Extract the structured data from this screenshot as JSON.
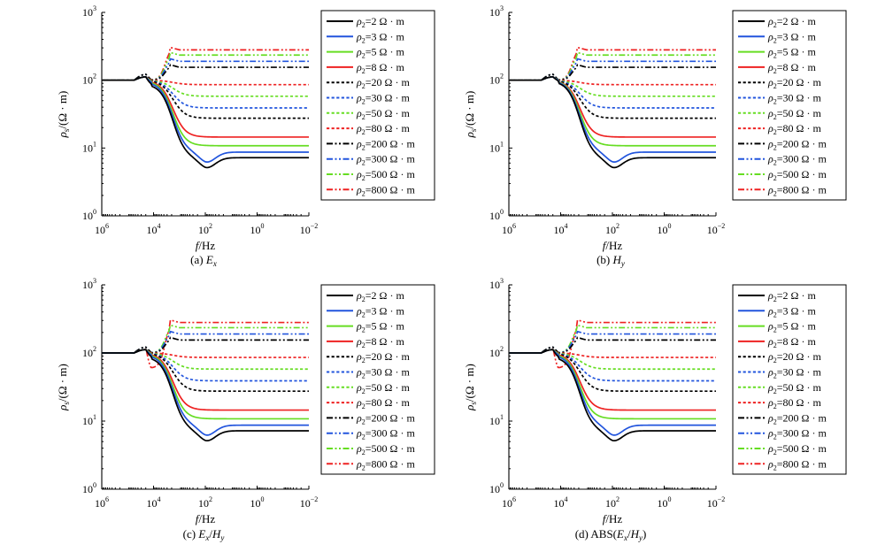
{
  "figure": {
    "xlabel_f": "f",
    "xlabel_unit": "/Hz",
    "ylabel_rho": "ρ",
    "ylabel_sub": "s",
    "ylabel_unit": "/(Ω · m)",
    "legend_rho": "ρ",
    "legend_sub": "2",
    "legend_unit": "Ω · m"
  },
  "chart_data": [
    {
      "type": "line",
      "caption_prefix": "(a) ",
      "caption_math": "Ex",
      "xscale": "log",
      "x_reversed": true,
      "xlim": [
        1000000,
        0.01
      ],
      "x_ticks": [
        "10^6",
        "10^4",
        "10^2",
        "10^0",
        "10^-2"
      ],
      "yscale": "log",
      "ylim": [
        1,
        1000
      ],
      "y_ticks": [
        "10^0",
        "10^1",
        "10^2",
        "10^3"
      ],
      "legend_position": "right",
      "series": [
        {
          "name": "ρ2=2 Ω·m",
          "rho2": 2,
          "color": "#000000",
          "style": "solid",
          "low_value": 7.2,
          "dip": 0.88,
          "near_peak": 1.15
        },
        {
          "name": "ρ2=3 Ω·m",
          "rho2": 3,
          "color": "#2255dd",
          "style": "solid",
          "low_value": 8.7,
          "dip": 0.94,
          "near_peak": 1.15
        },
        {
          "name": "ρ2=5 Ω·m",
          "rho2": 5,
          "color": "#66dd22",
          "style": "solid",
          "low_value": 10.8,
          "dip": 0.97,
          "near_peak": 1.15
        },
        {
          "name": "ρ2=8 Ω·m",
          "rho2": 8,
          "color": "#ee2222",
          "style": "solid",
          "low_value": 14.5,
          "dip": 0.99,
          "near_peak": 1.15
        },
        {
          "name": "ρ2=20 Ω·m",
          "rho2": 20,
          "color": "#000000",
          "style": "dot",
          "low_value": 27.5,
          "dip": 1,
          "near_peak": 1.15
        },
        {
          "name": "ρ2=30 Ω·m",
          "rho2": 30,
          "color": "#2255dd",
          "style": "dot",
          "low_value": 39,
          "dip": 1,
          "near_peak": 1.15
        },
        {
          "name": "ρ2=50 Ω·m",
          "rho2": 50,
          "color": "#66dd22",
          "style": "dot",
          "low_value": 58,
          "dip": 1,
          "near_peak": 1.15
        },
        {
          "name": "ρ2=80 Ω·m",
          "rho2": 80,
          "color": "#ee2222",
          "style": "dot",
          "low_value": 86,
          "dip": 1,
          "near_peak": 1.15
        },
        {
          "name": "ρ2=200 Ω·m",
          "rho2": 200,
          "color": "#000000",
          "style": "dashdotdot",
          "low_value": 155,
          "dip": 1,
          "near_peak": 1.1
        },
        {
          "name": "ρ2=300 Ω·m",
          "rho2": 300,
          "color": "#2255dd",
          "style": "dashdotdot",
          "low_value": 190,
          "dip": 1,
          "near_peak": 1.1
        },
        {
          "name": "ρ2=500 Ω·m",
          "rho2": 500,
          "color": "#66dd22",
          "style": "dashdotdot",
          "low_value": 235,
          "dip": 1,
          "near_peak": 1.1
        },
        {
          "name": "ρ2=800 Ω·m",
          "rho2": 800,
          "color": "#ee2222",
          "style": "dashdotdot",
          "low_value": 280,
          "dip": 1,
          "near_peak": 1.1
        }
      ]
    },
    {
      "type": "line",
      "caption_prefix": "(b) ",
      "caption_math": "Hy",
      "xscale": "log",
      "x_reversed": true,
      "xlim": [
        1000000,
        0.01
      ],
      "x_ticks": [
        "10^6",
        "10^4",
        "10^2",
        "10^0",
        "10^-2"
      ],
      "yscale": "log",
      "ylim": [
        1,
        1000
      ],
      "y_ticks": [
        "10^0",
        "10^1",
        "10^2",
        "10^3"
      ],
      "legend_position": "right",
      "series": [
        {
          "name": "ρ2=2 Ω·m",
          "rho2": 2,
          "color": "#000000",
          "style": "solid",
          "low_value": 7.2,
          "dip": 0.97,
          "near_peak": 1.15
        },
        {
          "name": "ρ2=3 Ω·m",
          "rho2": 3,
          "color": "#2255dd",
          "style": "solid",
          "low_value": 8.7,
          "dip": 0.99,
          "near_peak": 1.15
        },
        {
          "name": "ρ2=5 Ω·m",
          "rho2": 5,
          "color": "#66dd22",
          "style": "solid",
          "low_value": 10.8,
          "dip": 1,
          "near_peak": 1.15
        },
        {
          "name": "ρ2=8 Ω·m",
          "rho2": 8,
          "color": "#ee2222",
          "style": "solid",
          "low_value": 14.5,
          "dip": 1,
          "near_peak": 1.15
        },
        {
          "name": "ρ2=20 Ω·m",
          "rho2": 20,
          "color": "#000000",
          "style": "dot",
          "low_value": 27.5,
          "dip": 1,
          "near_peak": 1.15
        },
        {
          "name": "ρ2=30 Ω·m",
          "rho2": 30,
          "color": "#2255dd",
          "style": "dot",
          "low_value": 39,
          "dip": 1,
          "near_peak": 1.15
        },
        {
          "name": "ρ2=50 Ω·m",
          "rho2": 50,
          "color": "#66dd22",
          "style": "dot",
          "low_value": 58,
          "dip": 1,
          "near_peak": 1.15
        },
        {
          "name": "ρ2=80 Ω·m",
          "rho2": 80,
          "color": "#ee2222",
          "style": "dot",
          "low_value": 86,
          "dip": 1,
          "near_peak": 1.15
        },
        {
          "name": "ρ2=200 Ω·m",
          "rho2": 200,
          "color": "#000000",
          "style": "dashdotdot",
          "low_value": 155,
          "dip": 1,
          "near_peak": 1.1
        },
        {
          "name": "ρ2=300 Ω·m",
          "rho2": 300,
          "color": "#2255dd",
          "style": "dashdotdot",
          "low_value": 190,
          "dip": 1,
          "near_peak": 1.1
        },
        {
          "name": "ρ2=500 Ω·m",
          "rho2": 500,
          "color": "#66dd22",
          "style": "dashdotdot",
          "low_value": 235,
          "dip": 1,
          "near_peak": 1.1
        },
        {
          "name": "ρ2=800 Ω·m",
          "rho2": 800,
          "color": "#ee2222",
          "style": "dashdotdot",
          "low_value": 280,
          "dip": 1,
          "near_peak": 1.1
        }
      ]
    },
    {
      "type": "line",
      "caption_prefix": "(c) ",
      "caption_math": "Ex/Hy",
      "xscale": "log",
      "x_reversed": true,
      "xlim": [
        1000000,
        0.01
      ],
      "x_ticks": [
        "10^6",
        "10^4",
        "10^2",
        "10^0",
        "10^-2"
      ],
      "yscale": "log",
      "ylim": [
        1,
        1000
      ],
      "y_ticks": [
        "10^0",
        "10^1",
        "10^2",
        "10^3"
      ],
      "legend_position": "right",
      "series": [
        {
          "name": "ρ2=2 Ω·m",
          "rho2": 2,
          "color": "#000000",
          "style": "solid",
          "low_value": 7.2,
          "dip": 0.88,
          "near_peak": 1.15
        },
        {
          "name": "ρ2=3 Ω·m",
          "rho2": 3,
          "color": "#2255dd",
          "style": "solid",
          "low_value": 8.7,
          "dip": 0.94,
          "near_peak": 1.15
        },
        {
          "name": "ρ2=5 Ω·m",
          "rho2": 5,
          "color": "#66dd22",
          "style": "solid",
          "low_value": 10.8,
          "dip": 0.97,
          "near_peak": 1.15
        },
        {
          "name": "ρ2=8 Ω·m",
          "rho2": 8,
          "color": "#ee2222",
          "style": "solid",
          "low_value": 14.5,
          "dip": 0.99,
          "near_peak": 1.15
        },
        {
          "name": "ρ2=20 Ω·m",
          "rho2": 20,
          "color": "#000000",
          "style": "dot",
          "low_value": 27.5,
          "dip": 1,
          "near_peak": 1.15
        },
        {
          "name": "ρ2=30 Ω·m",
          "rho2": 30,
          "color": "#2255dd",
          "style": "dot",
          "low_value": 39,
          "dip": 1,
          "near_peak": 1.15
        },
        {
          "name": "ρ2=50 Ω·m",
          "rho2": 50,
          "color": "#66dd22",
          "style": "dot",
          "low_value": 58,
          "dip": 1,
          "near_peak": 1.15
        },
        {
          "name": "ρ2=80 Ω·m",
          "rho2": 80,
          "color": "#ee2222",
          "style": "dot",
          "low_value": 86,
          "dip": 1,
          "near_peak": 1.15
        },
        {
          "name": "ρ2=200 Ω·m",
          "rho2": 200,
          "color": "#000000",
          "style": "dashdotdot",
          "low_value": 155,
          "dip": 1,
          "near_peak": 1.1
        },
        {
          "name": "ρ2=300 Ω·m",
          "rho2": 300,
          "color": "#2255dd",
          "style": "dashdotdot",
          "low_value": 190,
          "dip": 1,
          "near_peak": 1.1
        },
        {
          "name": "ρ2=500 Ω·m",
          "rho2": 500,
          "color": "#66dd22",
          "style": "dashdotdot",
          "low_value": 235,
          "dip": 1,
          "near_peak": 1.1
        },
        {
          "name": "ρ2=800 Ω·m",
          "rho2": 800,
          "color": "#ee2222",
          "style": "dashdotdot",
          "low_value": 280,
          "dip": 0.6,
          "near_peak": 1.1
        }
      ]
    },
    {
      "type": "line",
      "caption_prefix": "(d) ABS(",
      "caption_math": "Ex/Hy",
      "caption_suffix": ")",
      "xscale": "log",
      "x_reversed": true,
      "xlim": [
        1000000,
        0.01
      ],
      "x_ticks": [
        "10^6",
        "10^4",
        "10^2",
        "10^0",
        "10^-2"
      ],
      "yscale": "log",
      "ylim": [
        1,
        1000
      ],
      "y_ticks": [
        "10^0",
        "10^1",
        "10^2",
        "10^3"
      ],
      "legend_position": "right",
      "series": [
        {
          "name": "ρ2=2 Ω·m",
          "rho2": 2,
          "color": "#000000",
          "style": "solid",
          "low_value": 7.2,
          "dip": 0.88,
          "near_peak": 1.15
        },
        {
          "name": "ρ2=3 Ω·m",
          "rho2": 3,
          "color": "#2255dd",
          "style": "solid",
          "low_value": 8.7,
          "dip": 0.94,
          "near_peak": 1.15
        },
        {
          "name": "ρ2=5 Ω·m",
          "rho2": 5,
          "color": "#66dd22",
          "style": "solid",
          "low_value": 10.8,
          "dip": 0.97,
          "near_peak": 1.15
        },
        {
          "name": "ρ2=8 Ω·m",
          "rho2": 8,
          "color": "#ee2222",
          "style": "solid",
          "low_value": 14.5,
          "dip": 0.99,
          "near_peak": 1.15
        },
        {
          "name": "ρ2=20 Ω·m",
          "rho2": 20,
          "color": "#000000",
          "style": "dot",
          "low_value": 27.5,
          "dip": 1,
          "near_peak": 1.15
        },
        {
          "name": "ρ2=30 Ω·m",
          "rho2": 30,
          "color": "#2255dd",
          "style": "dot",
          "low_value": 39,
          "dip": 1,
          "near_peak": 1.15
        },
        {
          "name": "ρ2=50 Ω·m",
          "rho2": 50,
          "color": "#66dd22",
          "style": "dot",
          "low_value": 58,
          "dip": 1,
          "near_peak": 1.15
        },
        {
          "name": "ρ2=80 Ω·m",
          "rho2": 80,
          "color": "#ee2222",
          "style": "dot",
          "low_value": 86,
          "dip": 1,
          "near_peak": 1.15
        },
        {
          "name": "ρ2=200 Ω·m",
          "rho2": 200,
          "color": "#000000",
          "style": "dashdotdot",
          "low_value": 155,
          "dip": 1,
          "near_peak": 1.1
        },
        {
          "name": "ρ2=300 Ω·m",
          "rho2": 300,
          "color": "#2255dd",
          "style": "dashdotdot",
          "low_value": 190,
          "dip": 1,
          "near_peak": 1.1
        },
        {
          "name": "ρ2=500 Ω·m",
          "rho2": 500,
          "color": "#66dd22",
          "style": "dashdotdot",
          "low_value": 235,
          "dip": 1,
          "near_peak": 1.1
        },
        {
          "name": "ρ2=800 Ω·m",
          "rho2": 800,
          "color": "#ee2222",
          "style": "dashdotdot",
          "low_value": 280,
          "dip": 0.6,
          "near_peak": 1.1
        }
      ]
    }
  ]
}
